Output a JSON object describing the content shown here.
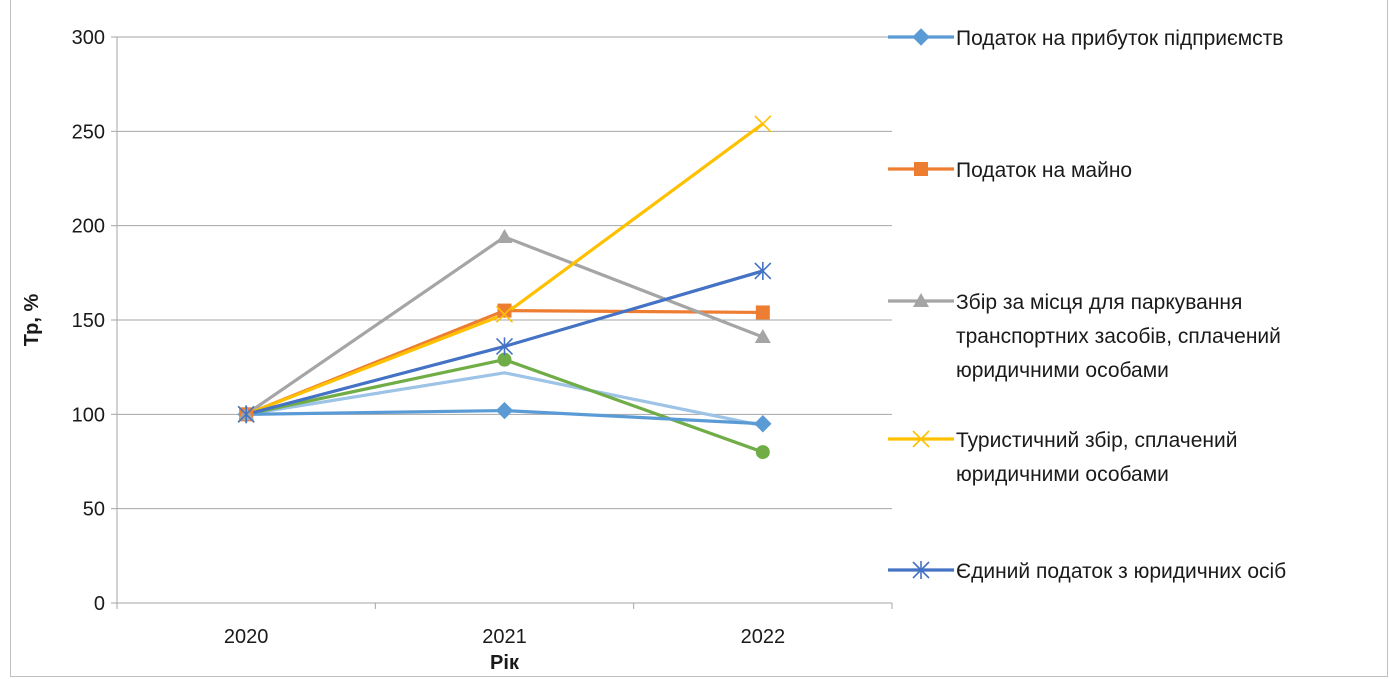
{
  "chart_data": {
    "type": "line",
    "xlabel": "Рік",
    "ylabel": "Тр, %",
    "categories": [
      "2020",
      "2021",
      "2022"
    ],
    "ylim": [
      0,
      300
    ],
    "yticks": [
      0,
      50,
      100,
      150,
      200,
      250,
      300
    ],
    "grid": true,
    "legend_position": "right",
    "series": [
      {
        "name": "",
        "values": [
          100,
          122,
          94
        ],
        "color": "#9dc3e6",
        "marker": "none"
      },
      {
        "name": "",
        "values": [
          100,
          129,
          80
        ],
        "color": "#70ad47",
        "marker": "circle"
      },
      {
        "name": "Податок на прибуток підприємств",
        "values": [
          100,
          102,
          95
        ],
        "color": "#5b9bd5",
        "marker": "diamond"
      },
      {
        "name": "Податок на майно",
        "values": [
          100,
          155,
          154
        ],
        "color": "#ed7d31",
        "marker": "square"
      },
      {
        "name": "Збір за місця для паркування транспортних засобів, сплачений юридичними особами",
        "values": [
          100,
          194,
          141
        ],
        "color": "#a5a5a5",
        "marker": "triangle"
      },
      {
        "name": "Туристичний збір, сплачений юридичними особами",
        "values": [
          100,
          153,
          254
        ],
        "color": "#ffc000",
        "marker": "x"
      },
      {
        "name": "Єдиний податок з юридичних осіб",
        "values": [
          100,
          136,
          176
        ],
        "color": "#4472c4",
        "marker": "star"
      }
    ],
    "legend": [
      {
        "lines": [
          "Податок на прибуток підприємств"
        ],
        "series_index": 2
      },
      {
        "lines": [
          "Податок на майно"
        ],
        "series_index": 3
      },
      {
        "lines": [
          "Збір за місця для паркування",
          "транспортних засобів, сплачений",
          "юридичними особами"
        ],
        "series_index": 4
      },
      {
        "lines": [
          "Туристичний збір, сплачений",
          "юридичними особами"
        ],
        "series_index": 5
      },
      {
        "lines": [
          "Єдиний податок з юридичних осіб"
        ],
        "series_index": 6
      }
    ]
  }
}
